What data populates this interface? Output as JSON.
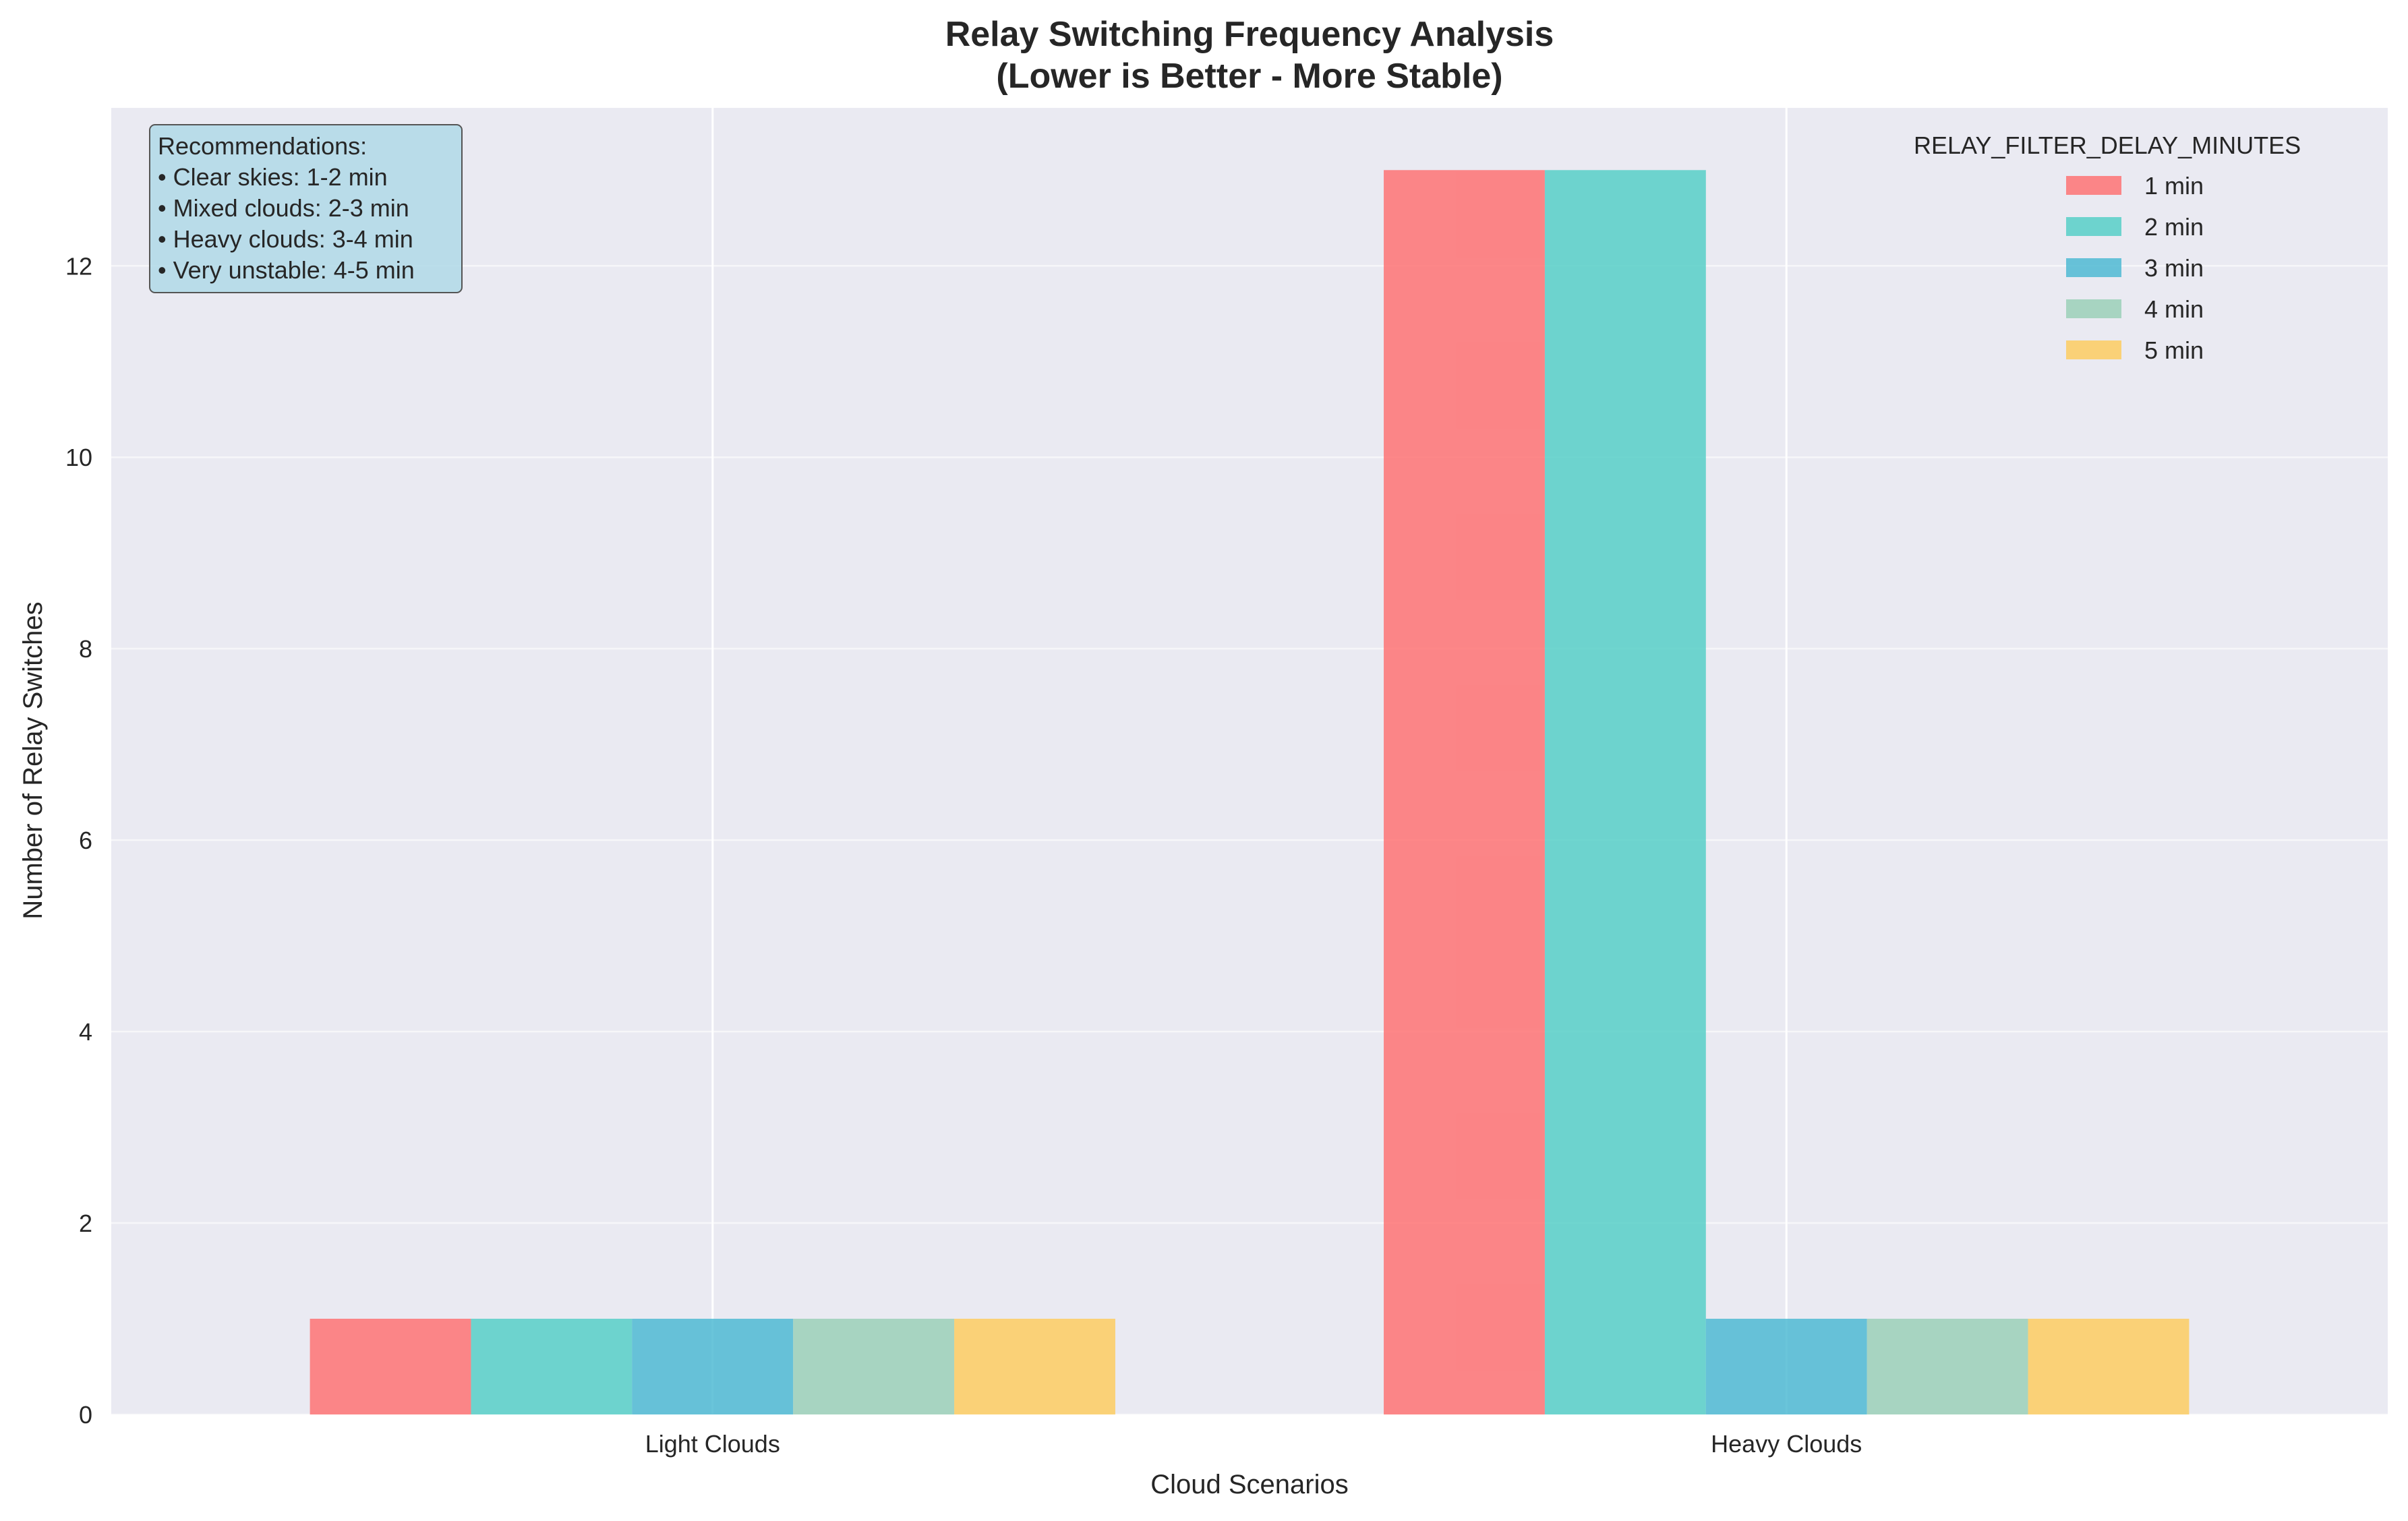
{
  "chart_data": {
    "type": "bar",
    "title": "Relay Switching Frequency Analysis",
    "subtitle": "(Lower is Better - More Stable)",
    "xlabel": "Cloud Scenarios",
    "ylabel": "Number of Relay Switches",
    "categories": [
      "Light Clouds",
      "Heavy Clouds"
    ],
    "ylim": [
      0,
      13.65
    ],
    "yticks": [
      0,
      2,
      4,
      6,
      8,
      10,
      12
    ],
    "grid": true,
    "legend": {
      "title": "RELAY_FILTER_DELAY_MINUTES",
      "placement": "top-right"
    },
    "series": [
      {
        "name": "1 min",
        "color": "#ff6b6b",
        "values": [
          1,
          13
        ]
      },
      {
        "name": "2 min",
        "color": "#4ecdc4",
        "values": [
          1,
          13
        ]
      },
      {
        "name": "3 min",
        "color": "#45b7d1",
        "values": [
          1,
          1
        ]
      },
      {
        "name": "4 min",
        "color": "#96ceb4",
        "values": [
          1,
          1
        ]
      },
      {
        "name": "5 min",
        "color": "#feca57",
        "values": [
          1,
          1
        ]
      }
    ],
    "annotation": {
      "placement": "top-left",
      "lines": [
        "Recommendations:",
        "• Clear skies: 1-2 min",
        "• Mixed clouds: 2-3 min",
        "• Heavy clouds: 3-4 min",
        "• Very unstable: 4-5 min"
      ]
    }
  }
}
